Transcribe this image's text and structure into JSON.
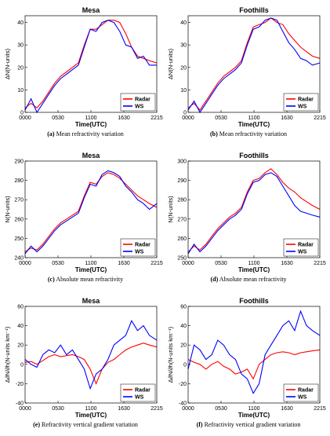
{
  "figure": {
    "x_ticks": [
      "0000",
      "0530",
      "1100",
      "1630",
      "2215"
    ],
    "x_label": "Time(UTC)",
    "legend": {
      "radar": "Radar",
      "ws": "WS"
    },
    "colors": {
      "radar": "#ff0000",
      "ws": "#0000ff",
      "axis": "#000000"
    },
    "panels": [
      {
        "id": "a",
        "title": "Mesa",
        "ylabel": "ΔN(N-units)",
        "caption_label": "(a)",
        "caption_text": "Mean refractivity variation"
      },
      {
        "id": "b",
        "title": "Foothills",
        "ylabel": "ΔN(N-units)",
        "caption_label": "(b)",
        "caption_text": "Mean refractivity variation"
      },
      {
        "id": "c",
        "title": "Mesa",
        "ylabel": "N(N-units)",
        "caption_label": "(c)",
        "caption_text": "Absolute mean refractivity"
      },
      {
        "id": "d",
        "title": "Foothills",
        "ylabel": "N(N-units)",
        "caption_label": "(d)",
        "caption_text": "Absolute mean refractivity"
      },
      {
        "id": "e",
        "title": "Mesa",
        "ylabel": "Δ∂N/∂h(N-units km⁻¹)",
        "caption_label": "(e)",
        "caption_text": "Refractivity vertical gradient variation"
      },
      {
        "id": "f",
        "title": "Foothills",
        "ylabel": "Δ∂N/∂h(N-units km⁻¹)",
        "caption_label": "(f)",
        "caption_text": "Refractivity vertical gradient variation"
      }
    ]
  },
  "chart_data": [
    {
      "panel": "a",
      "type": "line",
      "title": "Mesa",
      "xlabel": "Time(UTC)",
      "ylabel": "ΔN(N-units)",
      "x_range_utc_hours": [
        0,
        22.25
      ],
      "ylim": [
        0,
        43
      ],
      "y_ticks": [
        0,
        10,
        20,
        30,
        40
      ],
      "x_tick_labels": [
        "0000",
        "0530",
        "1100",
        "1630",
        "2215"
      ],
      "legend_position": "bottom-right",
      "grid": false,
      "series": [
        {
          "name": "Radar",
          "color": "#ff0000",
          "x": [
            0,
            1,
            2,
            3,
            4,
            5,
            6,
            7,
            8,
            9,
            10,
            11,
            12,
            13,
            14,
            15,
            16,
            17,
            18,
            19,
            20,
            21,
            22.25
          ],
          "y": [
            2,
            4,
            2,
            5,
            9,
            13,
            16,
            18,
            20,
            22,
            30,
            37,
            37,
            39,
            41,
            41,
            40,
            35,
            29,
            25,
            24,
            23,
            22
          ]
        },
        {
          "name": "WS",
          "color": "#0000ff",
          "x": [
            0,
            1,
            2,
            3,
            4,
            5,
            6,
            7,
            8,
            9,
            10,
            11,
            12,
            13,
            14,
            15,
            16,
            17,
            18,
            19,
            20,
            21,
            22.25
          ],
          "y": [
            1,
            6,
            0,
            4,
            8,
            12,
            15,
            17,
            19,
            21,
            29,
            37,
            36,
            40,
            41,
            40,
            36,
            30,
            29,
            24,
            25,
            21,
            21
          ]
        }
      ]
    },
    {
      "panel": "b",
      "type": "line",
      "title": "Foothills",
      "xlabel": "Time(UTC)",
      "ylabel": "ΔN(N-units)",
      "x_range_utc_hours": [
        0,
        22.25
      ],
      "ylim": [
        0,
        43
      ],
      "y_ticks": [
        0,
        10,
        20,
        30,
        40
      ],
      "x_tick_labels": [
        "0000",
        "0530",
        "1100",
        "1630",
        "2215"
      ],
      "legend_position": "bottom-right",
      "grid": false,
      "series": [
        {
          "name": "Radar",
          "color": "#ff0000",
          "x": [
            0,
            1,
            2,
            3,
            4,
            5,
            6,
            7,
            8,
            9,
            10,
            11,
            12,
            13,
            14,
            15,
            16,
            17,
            18,
            19,
            20,
            21,
            22.25
          ],
          "y": [
            2,
            4,
            1,
            5,
            9,
            13,
            16,
            18,
            20,
            23,
            31,
            38,
            39,
            40,
            42,
            40,
            39,
            35,
            32,
            29,
            27,
            25,
            24
          ]
        },
        {
          "name": "WS",
          "color": "#0000ff",
          "x": [
            0,
            1,
            2,
            3,
            4,
            5,
            6,
            7,
            8,
            9,
            10,
            11,
            12,
            13,
            14,
            15,
            16,
            17,
            18,
            19,
            20,
            21,
            22.25
          ],
          "y": [
            1,
            5,
            0,
            4,
            8,
            12,
            15,
            17,
            19,
            22,
            30,
            37,
            38,
            41,
            42,
            41,
            36,
            31,
            28,
            24,
            23,
            21,
            22
          ]
        }
      ]
    },
    {
      "panel": "c",
      "type": "line",
      "title": "Mesa",
      "xlabel": "Time(UTC)",
      "ylabel": "N(N-units)",
      "x_range_utc_hours": [
        0,
        22.25
      ],
      "ylim": [
        240,
        290
      ],
      "y_ticks": [
        240,
        250,
        260,
        270,
        280,
        290
      ],
      "x_tick_labels": [
        "0000",
        "0530",
        "1100",
        "1630",
        "2215"
      ],
      "legend_position": "bottom-right",
      "grid": false,
      "series": [
        {
          "name": "Radar",
          "color": "#ff0000",
          "x": [
            0,
            1,
            2,
            3,
            4,
            5,
            6,
            7,
            8,
            9,
            10,
            11,
            12,
            13,
            14,
            15,
            16,
            17,
            18,
            19,
            20,
            21,
            22.25
          ],
          "y": [
            243,
            245,
            244,
            247,
            251,
            255,
            258,
            260,
            262,
            264,
            272,
            279,
            278,
            282,
            284,
            283,
            281,
            278,
            275,
            272,
            270,
            268,
            266
          ]
        },
        {
          "name": "WS",
          "color": "#0000ff",
          "x": [
            0,
            1,
            2,
            3,
            4,
            5,
            6,
            7,
            8,
            9,
            10,
            11,
            12,
            13,
            14,
            15,
            16,
            17,
            18,
            19,
            20,
            21,
            22.25
          ],
          "y": [
            242,
            246,
            243,
            246,
            250,
            254,
            257,
            259,
            261,
            263,
            271,
            278,
            277,
            283,
            285,
            284,
            282,
            277,
            274,
            270,
            268,
            265,
            268
          ]
        }
      ]
    },
    {
      "panel": "d",
      "type": "line",
      "title": "Foothills",
      "xlabel": "Time(UTC)",
      "ylabel": "N(N-units)",
      "x_range_utc_hours": [
        0,
        22.25
      ],
      "ylim": [
        250,
        300
      ],
      "y_ticks": [
        250,
        260,
        270,
        280,
        290,
        300
      ],
      "x_tick_labels": [
        "0000",
        "0530",
        "1100",
        "1630",
        "2215"
      ],
      "legend_position": "bottom-right",
      "grid": false,
      "series": [
        {
          "name": "Radar",
          "color": "#ff0000",
          "x": [
            0,
            1,
            2,
            3,
            4,
            5,
            6,
            7,
            8,
            9,
            10,
            11,
            12,
            13,
            14,
            15,
            16,
            17,
            18,
            19,
            20,
            21,
            22.25
          ],
          "y": [
            253,
            256,
            254,
            257,
            261,
            265,
            268,
            271,
            273,
            276,
            284,
            290,
            291,
            294,
            296,
            293,
            289,
            286,
            284,
            281,
            279,
            277,
            275
          ]
        },
        {
          "name": "WS",
          "color": "#0000ff",
          "x": [
            0,
            1,
            2,
            3,
            4,
            5,
            6,
            7,
            8,
            9,
            10,
            11,
            12,
            13,
            14,
            15,
            16,
            17,
            18,
            19,
            20,
            21,
            22.25
          ],
          "y": [
            252,
            257,
            253,
            256,
            260,
            264,
            267,
            270,
            272,
            275,
            283,
            289,
            290,
            293,
            294,
            292,
            287,
            282,
            277,
            274,
            273,
            272,
            271
          ]
        }
      ]
    },
    {
      "panel": "e",
      "type": "line",
      "title": "Mesa",
      "xlabel": "Time(UTC)",
      "ylabel": "Δ∂N/∂h(N-units km⁻¹)",
      "x_range_utc_hours": [
        0,
        22.25
      ],
      "ylim": [
        -40,
        60
      ],
      "y_ticks": [
        -40,
        -20,
        0,
        20,
        40,
        60
      ],
      "x_tick_labels": [
        "0000",
        "0530",
        "1100",
        "1630",
        "2215"
      ],
      "legend_position": "bottom-right",
      "grid": false,
      "series": [
        {
          "name": "Radar",
          "color": "#ff0000",
          "x": [
            0,
            1,
            2,
            3,
            4,
            5,
            6,
            7,
            8,
            9,
            10,
            11,
            12,
            13,
            14,
            15,
            16,
            17,
            18,
            19,
            20,
            21,
            22.25
          ],
          "y": [
            2,
            3,
            0,
            4,
            8,
            10,
            8,
            9,
            10,
            8,
            5,
            -5,
            -20,
            -5,
            2,
            5,
            10,
            15,
            18,
            20,
            22,
            20,
            18
          ]
        },
        {
          "name": "WS",
          "color": "#0000ff",
          "x": [
            0,
            1,
            2,
            3,
            4,
            5,
            6,
            7,
            8,
            9,
            10,
            11,
            12,
            13,
            14,
            15,
            16,
            17,
            18,
            19,
            20,
            21,
            22.25
          ],
          "y": [
            5,
            0,
            -3,
            10,
            15,
            12,
            20,
            10,
            15,
            5,
            -5,
            -25,
            -10,
            -5,
            5,
            20,
            25,
            30,
            45,
            35,
            40,
            30,
            25
          ]
        }
      ]
    },
    {
      "panel": "f",
      "type": "line",
      "title": "Foothills",
      "xlabel": "Time(UTC)",
      "ylabel": "Δ∂N/∂h(N-units km⁻¹)",
      "x_range_utc_hours": [
        0,
        22.25
      ],
      "ylim": [
        -40,
        60
      ],
      "y_ticks": [
        -40,
        -20,
        0,
        20,
        40,
        60
      ],
      "x_tick_labels": [
        "0000",
        "0530",
        "1100",
        "1630",
        "2215"
      ],
      "legend_position": "bottom-right",
      "grid": false,
      "series": [
        {
          "name": "Radar",
          "color": "#ff0000",
          "x": [
            0,
            1,
            2,
            3,
            4,
            5,
            6,
            7,
            8,
            9,
            10,
            11,
            12,
            13,
            14,
            15,
            16,
            17,
            18,
            19,
            20,
            21,
            22.25
          ],
          "y": [
            5,
            2,
            0,
            -5,
            0,
            3,
            -2,
            -5,
            -10,
            -8,
            -5,
            -15,
            0,
            5,
            10,
            12,
            13,
            12,
            10,
            12,
            13,
            14,
            15
          ]
        },
        {
          "name": "WS",
          "color": "#0000ff",
          "x": [
            0,
            1,
            2,
            3,
            4,
            5,
            6,
            7,
            8,
            9,
            10,
            11,
            12,
            13,
            14,
            15,
            16,
            17,
            18,
            19,
            20,
            21,
            22.25
          ],
          "y": [
            -5,
            20,
            15,
            5,
            10,
            25,
            20,
            10,
            5,
            -10,
            -15,
            -30,
            -20,
            10,
            20,
            30,
            40,
            45,
            35,
            55,
            40,
            35,
            30
          ]
        }
      ]
    }
  ]
}
